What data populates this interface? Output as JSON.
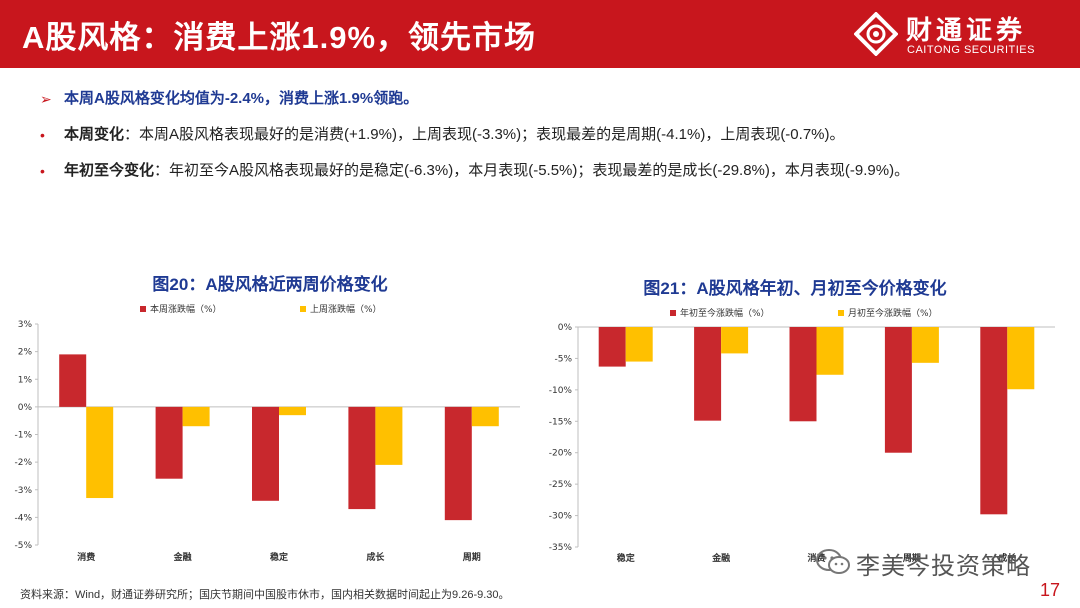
{
  "header": {
    "title": "A股风格：消费上涨1.9%，领先市场",
    "logo_cn": "财通证券",
    "logo_en": "CAITONG SECURITIES",
    "bg_color": "#c8161d"
  },
  "bullets": {
    "lead": "本周A股风格变化均值为-2.4%，消费上涨1.9%领跑。",
    "items": [
      {
        "key": "本周变化",
        "text": "：本周A股风格表现最好的是消费(+1.9%)，上周表现(-3.3%)；表现最差的是周期(-4.1%)，上周表现(-0.7%)。"
      },
      {
        "key": "年初至今变化",
        "text": "：年初至今A股风格表现最好的是稳定(-6.3%)，本月表现(-5.5%)；表现最差的是成长(-29.8%)，本月表现(-9.9%)。"
      }
    ]
  },
  "chart_data": [
    {
      "type": "bar",
      "title": "图20：A股风格近两周价格变化",
      "categories": [
        "消费",
        "金融",
        "稳定",
        "成长",
        "周期"
      ],
      "series": [
        {
          "name": "本周涨跌幅（%）",
          "color": "#c8282d",
          "values": [
            1.9,
            -2.6,
            -3.4,
            -3.7,
            -4.1
          ]
        },
        {
          "name": "上周涨跌幅（%）",
          "color": "#ffc000",
          "values": [
            -3.3,
            -0.7,
            -0.3,
            -2.1,
            -0.7
          ]
        }
      ],
      "ylim": [
        -5,
        3
      ],
      "yticks": [
        "3%",
        "2%",
        "1%",
        "0%",
        "-1%",
        "-2%",
        "-3%",
        "-4%",
        "-5%"
      ],
      "legend": "top"
    },
    {
      "type": "bar",
      "title": "图21：A股风格年初、月初至今价格变化",
      "categories": [
        "稳定",
        "金融",
        "消费",
        "周期",
        "成长"
      ],
      "series": [
        {
          "name": "年初至今涨跌幅（%）",
          "color": "#c8282d",
          "values": [
            -6.3,
            -14.9,
            -15.0,
            -20.0,
            -29.8
          ]
        },
        {
          "name": "月初至今涨跌幅（%）",
          "color": "#ffc000",
          "values": [
            -5.5,
            -4.2,
            -7.6,
            -5.7,
            -9.9
          ]
        }
      ],
      "ylim": [
        -35,
        0
      ],
      "yticks": [
        "0%",
        "-5%",
        "-10%",
        "-15%",
        "-20%",
        "-25%",
        "-30%",
        "-35%"
      ],
      "legend": "top"
    }
  ],
  "footer": {
    "source": "资料来源：Wind，财通证券研究所；国庆节期间中国股市休市，国内相关数据时间起止为9.26-9.30。",
    "page": "17"
  },
  "watermark": {
    "text": "李美岑投资策略"
  }
}
